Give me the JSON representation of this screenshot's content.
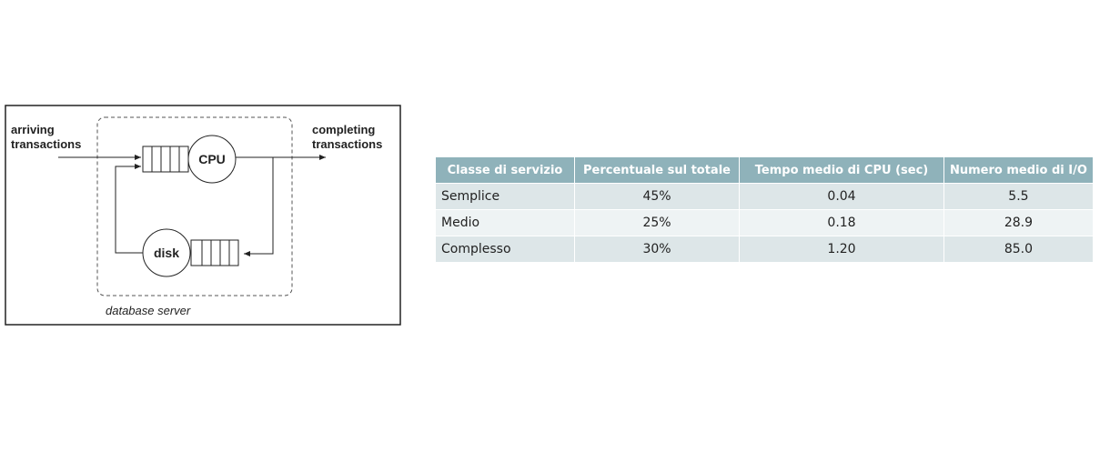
{
  "diagram": {
    "arriving_label": [
      "arriving",
      "transactions"
    ],
    "completing_label": [
      "completing",
      "transactions"
    ],
    "cpu_label": "CPU",
    "disk_label": "disk",
    "server_label": "database server"
  },
  "table": {
    "headers": [
      "Classe di servizio",
      "Percentuale sul totale",
      "Tempo medio di CPU (sec)",
      "Numero medio di I/O"
    ],
    "rows": [
      [
        "Semplice",
        "45%",
        "0.04",
        "5.5"
      ],
      [
        "Medio",
        "25%",
        "0.18",
        "28.9"
      ],
      [
        "Complesso",
        "30%",
        "1.20",
        "85.0"
      ]
    ]
  }
}
